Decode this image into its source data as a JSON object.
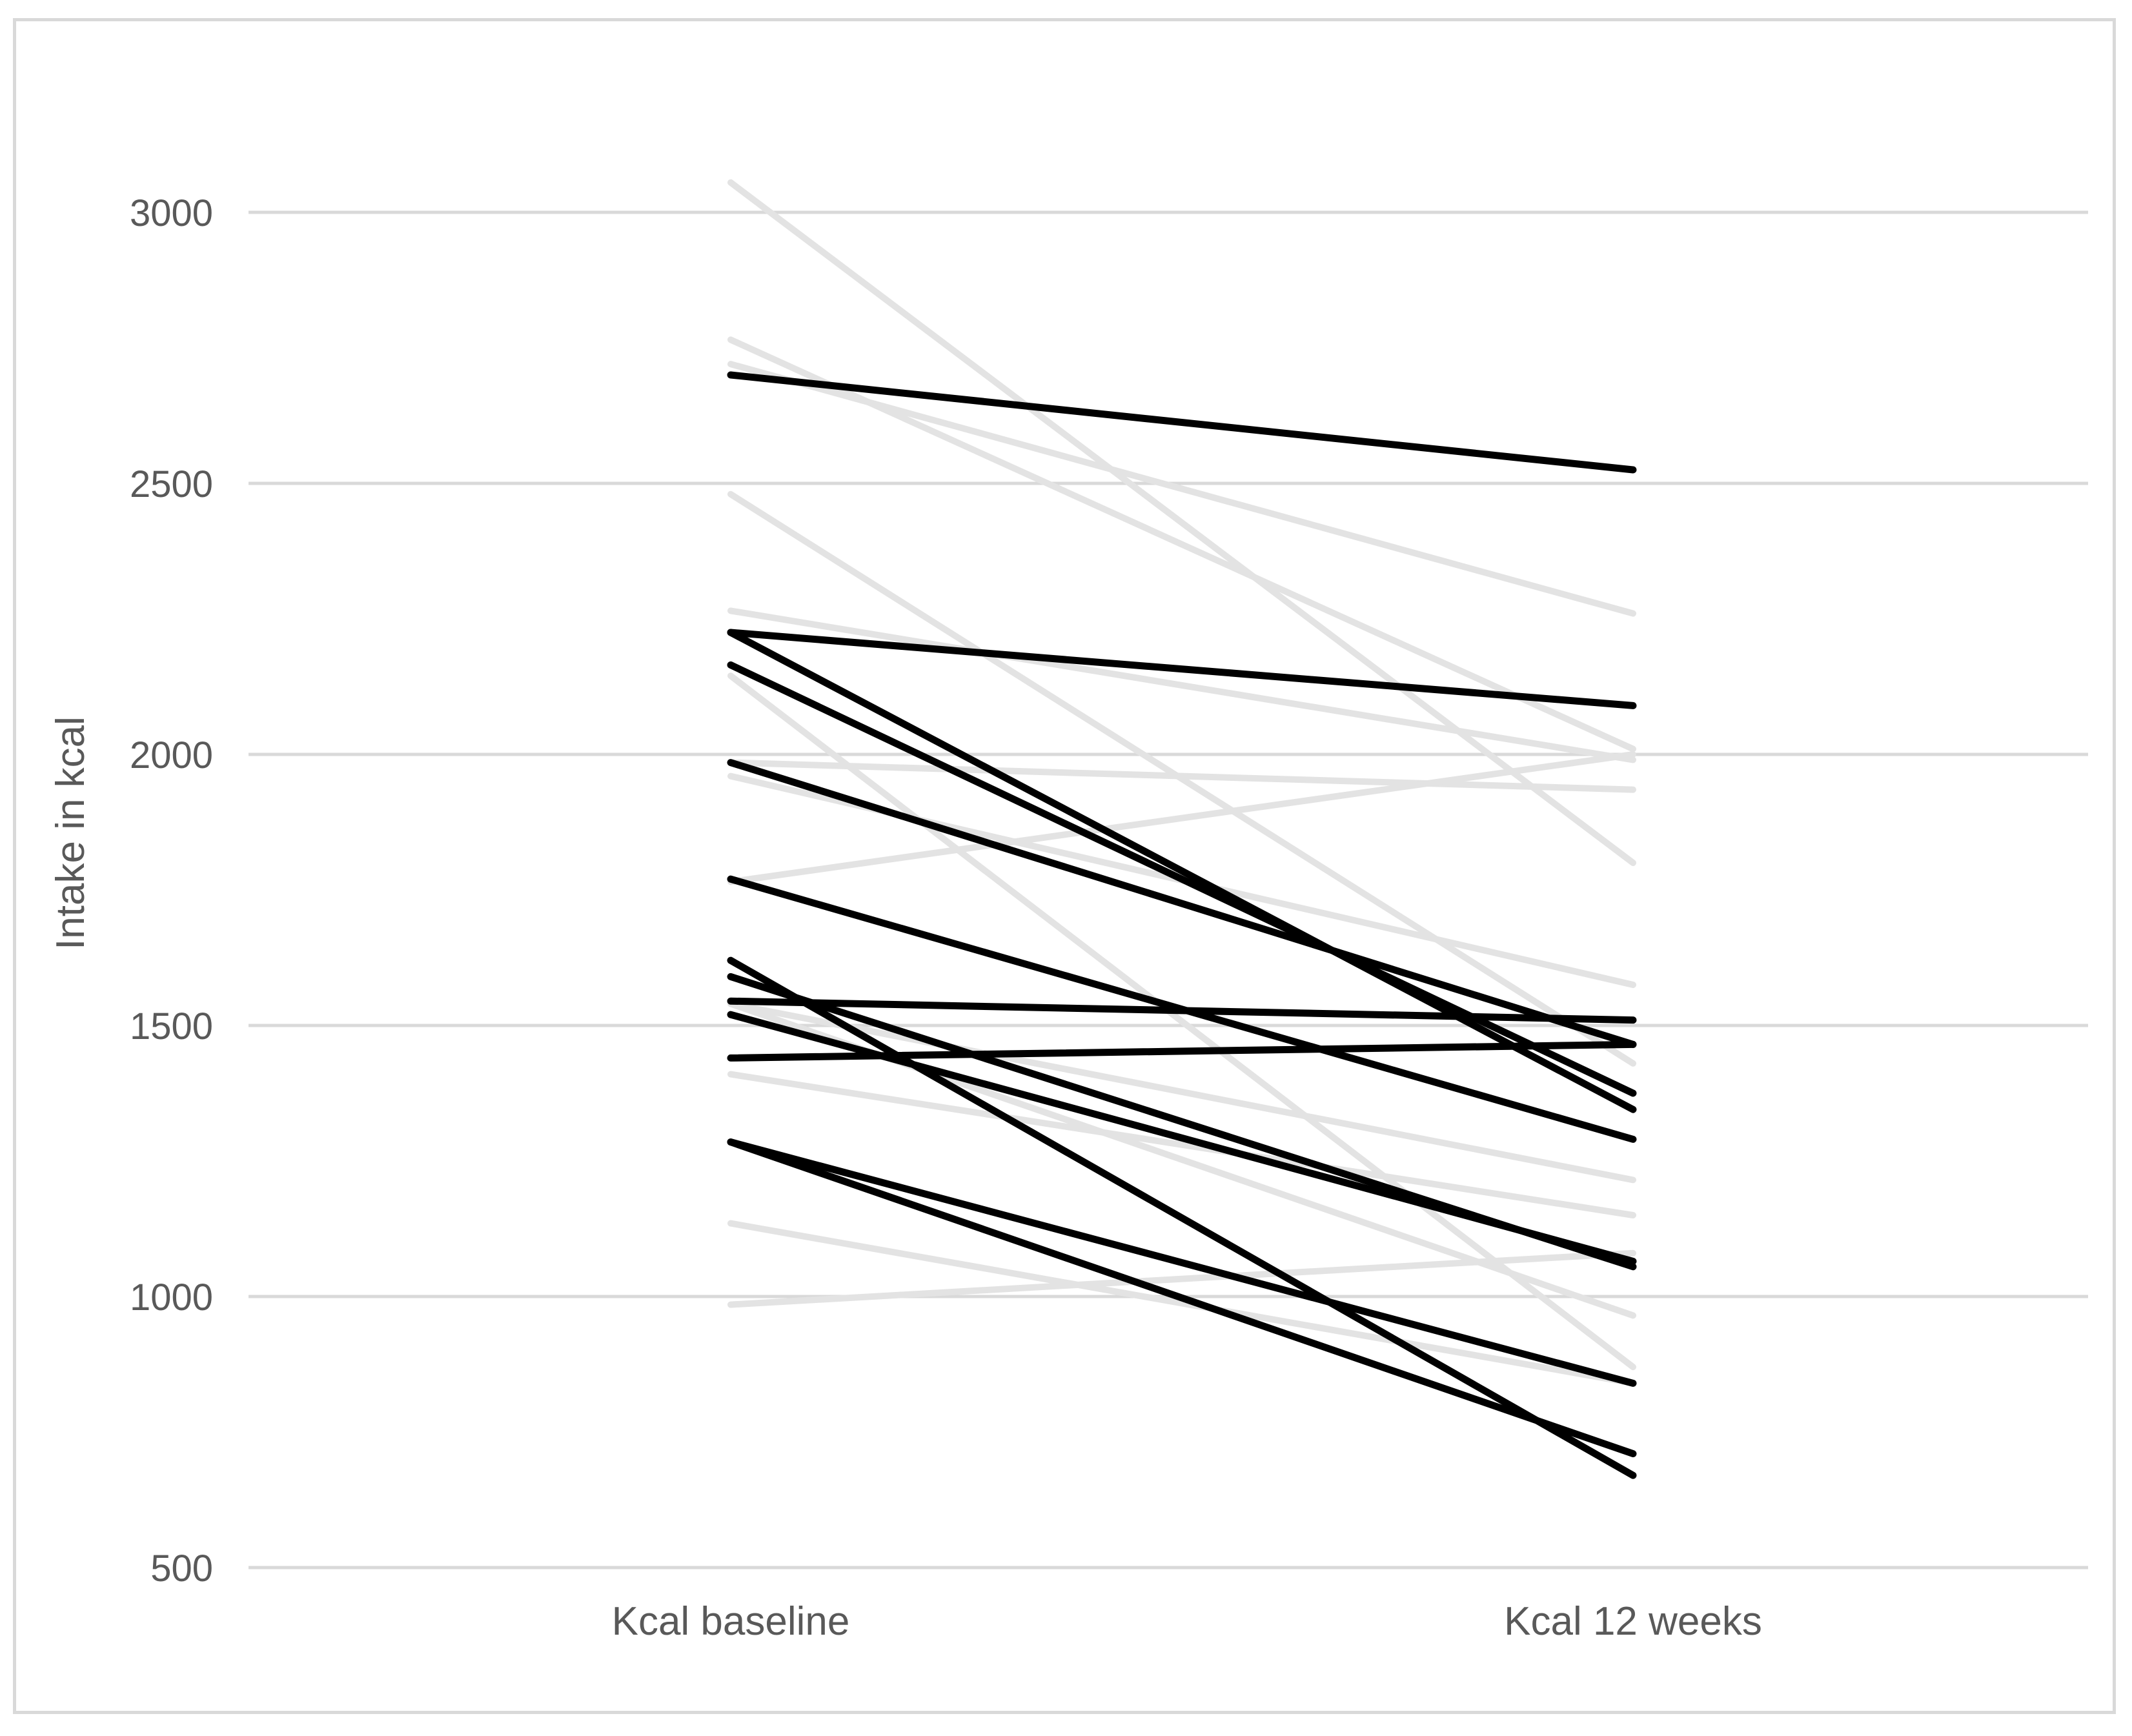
{
  "chart_data": {
    "type": "line",
    "title": "",
    "xlabel": "",
    "ylabel": "Intake in kcal",
    "categories": [
      "Kcal baseline",
      "Kcal 12 weeks"
    ],
    "ylim": [
      500,
      3000
    ],
    "yticks": [
      500,
      1000,
      1500,
      2000,
      2500,
      3000
    ],
    "grid": true,
    "legend": "none",
    "colors": {
      "light_series": "#e3e3e3",
      "dark_series": "#000000",
      "grid": "#d9d9d9",
      "text": "#595959"
    },
    "series": [
      {
        "group": "light",
        "values": [
          3055,
          1800
        ]
      },
      {
        "group": "light",
        "values": [
          2765,
          2010
        ]
      },
      {
        "group": "light",
        "values": [
          2720,
          2260
        ]
      },
      {
        "group": "light",
        "values": [
          2480,
          1430
        ]
      },
      {
        "group": "light",
        "values": [
          2265,
          1990
        ]
      },
      {
        "group": "light",
        "values": [
          2145,
          870
        ]
      },
      {
        "group": "light",
        "values": [
          1985,
          1935
        ]
      },
      {
        "group": "light",
        "values": [
          1960,
          1575
        ]
      },
      {
        "group": "light",
        "values": [
          1765,
          2000
        ]
      },
      {
        "group": "light",
        "values": [
          1540,
          1215
        ]
      },
      {
        "group": "light",
        "values": [
          1410,
          1150
        ]
      },
      {
        "group": "light",
        "values": [
          1540,
          965
        ]
      },
      {
        "group": "light",
        "values": [
          1135,
          840
        ]
      },
      {
        "group": "light",
        "values": [
          985,
          1080
        ]
      },
      {
        "group": "dark",
        "values": [
          2700,
          2525
        ]
      },
      {
        "group": "dark",
        "values": [
          2225,
          2090
        ]
      },
      {
        "group": "dark",
        "values": [
          2225,
          1345
        ]
      },
      {
        "group": "dark",
        "values": [
          2165,
          1375
        ]
      },
      {
        "group": "dark",
        "values": [
          1985,
          1465
        ]
      },
      {
        "group": "dark",
        "values": [
          1770,
          1290
        ]
      },
      {
        "group": "dark",
        "values": [
          1545,
          1510
        ]
      },
      {
        "group": "dark",
        "values": [
          1440,
          1465
        ]
      },
      {
        "group": "dark",
        "values": [
          1620,
          670
        ]
      },
      {
        "group": "dark",
        "values": [
          1590,
          1055
        ]
      },
      {
        "group": "dark",
        "values": [
          1520,
          1065
        ]
      },
      {
        "group": "dark",
        "values": [
          1285,
          710
        ]
      },
      {
        "group": "dark",
        "values": [
          1285,
          840
        ]
      }
    ]
  }
}
